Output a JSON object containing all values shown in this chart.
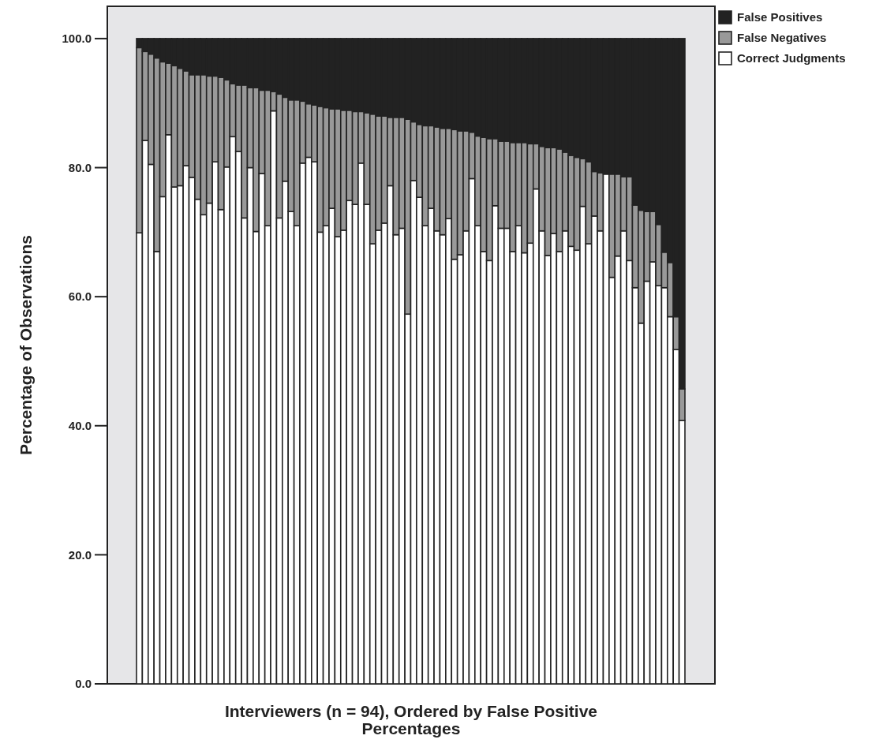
{
  "chart_data": {
    "type": "bar",
    "stacked": true,
    "xlabel": "Interviewers (n = 94), Ordered by False Positive Percentages",
    "ylabel": "Percentage of Observations",
    "categories": [
      null,
      null,
      null,
      null,
      null,
      null,
      null,
      null,
      null,
      null,
      null,
      null,
      null,
      null,
      null,
      null,
      null,
      null,
      null,
      null,
      null,
      null,
      null,
      null,
      null,
      null,
      null,
      null,
      null,
      null,
      null,
      null,
      null,
      null,
      null,
      null,
      null,
      null,
      null,
      null,
      null,
      null,
      null,
      null,
      null,
      null,
      null,
      null,
      null,
      null,
      null,
      null,
      null,
      null,
      null,
      null,
      null,
      null,
      null,
      null,
      null,
      null,
      null,
      null,
      null,
      null,
      null,
      null,
      null,
      null,
      null,
      null,
      null,
      null,
      null,
      null,
      null,
      null,
      null,
      null,
      null,
      null,
      null,
      null,
      null,
      null,
      null,
      null,
      null,
      null,
      null,
      null,
      null,
      null
    ],
    "series": [
      {
        "name": "Correct Judgments",
        "color": "#ffffff",
        "values": [
          69.9,
          84.2,
          80.5,
          67.0,
          75.5,
          85.1,
          77.0,
          77.2,
          80.3,
          78.5,
          75.1,
          72.7,
          74.5,
          80.9,
          73.5,
          80.1,
          84.8,
          82.5,
          72.2,
          80.0,
          70.1,
          79.1,
          71.0,
          88.8,
          72.2,
          77.9,
          73.2,
          71.0,
          80.7,
          81.6,
          80.9,
          70.0,
          71.0,
          73.7,
          69.3,
          70.3,
          74.9,
          74.3,
          80.7,
          74.3,
          68.2,
          70.3,
          71.4,
          77.2,
          69.6,
          70.6,
          57.3,
          78.0,
          75.4,
          71.0,
          73.7,
          70.2,
          69.6,
          72.1,
          65.8,
          66.5,
          70.2,
          78.3,
          71.0,
          67.0,
          65.6,
          74.1,
          70.6,
          70.6,
          67.0,
          71.0,
          66.8,
          68.3,
          76.7,
          70.2,
          66.4,
          69.8,
          67.0,
          70.2,
          67.8,
          67.2,
          74.0,
          68.2,
          72.5,
          70.2,
          79.0,
          63.0,
          66.3,
          70.2,
          65.6,
          61.4,
          55.9,
          62.4,
          65.4,
          61.7,
          61.4,
          56.9,
          51.8,
          40.8
        ]
      },
      {
        "name": "False Negatives",
        "color": "#999999",
        "values": [
          28.7,
          13.8,
          17.1,
          30.0,
          20.9,
          11.1,
          18.8,
          18.2,
          14.7,
          15.9,
          19.3,
          21.7,
          19.7,
          13.3,
          20.5,
          13.5,
          8.2,
          10.3,
          20.6,
          12.4,
          22.3,
          12.9,
          21.0,
          3.0,
          19.2,
          13.0,
          17.3,
          19.5,
          9.6,
          8.3,
          8.8,
          19.5,
          18.3,
          15.4,
          19.8,
          18.6,
          14.0,
          14.4,
          8.0,
          14.2,
          20.1,
          17.7,
          16.6,
          10.6,
          18.2,
          17.2,
          30.2,
          9.1,
          11.3,
          15.5,
          12.8,
          16.1,
          16.5,
          14.0,
          20.1,
          19.2,
          15.5,
          7.2,
          13.9,
          17.7,
          18.9,
          10.4,
          13.5,
          13.5,
          16.9,
          12.9,
          17.1,
          15.4,
          7.0,
          13.1,
          16.7,
          13.3,
          15.9,
          12.2,
          14.1,
          14.4,
          7.4,
          12.7,
          6.9,
          9.0,
          0,
          16.0,
          12.7,
          8.4,
          13.0,
          12.8,
          17.5,
          10.8,
          7.8,
          9.5,
          5.5,
          8.4,
          5.1,
          4.9
        ]
      },
      {
        "name": "False Positives",
        "color": "#222222",
        "values": [
          1.4,
          2.0,
          2.4,
          3.0,
          3.6,
          3.8,
          4.2,
          4.6,
          5.0,
          5.6,
          5.6,
          5.6,
          5.8,
          5.8,
          6.0,
          6.4,
          7.0,
          7.2,
          7.2,
          7.6,
          7.6,
          8.0,
          8.0,
          8.2,
          8.6,
          9.1,
          9.5,
          9.5,
          9.7,
          10.1,
          10.3,
          10.5,
          10.7,
          10.9,
          10.9,
          11.1,
          11.1,
          11.3,
          11.3,
          11.5,
          11.7,
          12.0,
          12.0,
          12.2,
          12.2,
          12.2,
          12.5,
          12.9,
          13.3,
          13.5,
          13.5,
          13.7,
          13.9,
          13.9,
          14.1,
          14.3,
          14.3,
          14.5,
          15.1,
          15.3,
          15.5,
          15.5,
          15.9,
          15.9,
          16.1,
          16.1,
          16.1,
          16.3,
          16.3,
          16.7,
          16.9,
          16.9,
          17.1,
          17.6,
          18.1,
          18.4,
          18.6,
          19.1,
          20.6,
          20.8,
          21.0,
          21.0,
          21.0,
          21.4,
          21.4,
          25.8,
          26.6,
          26.8,
          26.8,
          28.8,
          33.1,
          34.7,
          43.1,
          54.3
        ]
      }
    ],
    "ylim": [
      0,
      105
    ],
    "yticks": [
      {
        "value": 0,
        "label": "0.0"
      },
      {
        "value": 20,
        "label": "20.0"
      },
      {
        "value": 40,
        "label": "40.0"
      },
      {
        "value": 60,
        "label": "60.0"
      },
      {
        "value": 80,
        "label": "80.0"
      },
      {
        "value": 100,
        "label": "100.0"
      }
    ],
    "legend": "top right"
  }
}
